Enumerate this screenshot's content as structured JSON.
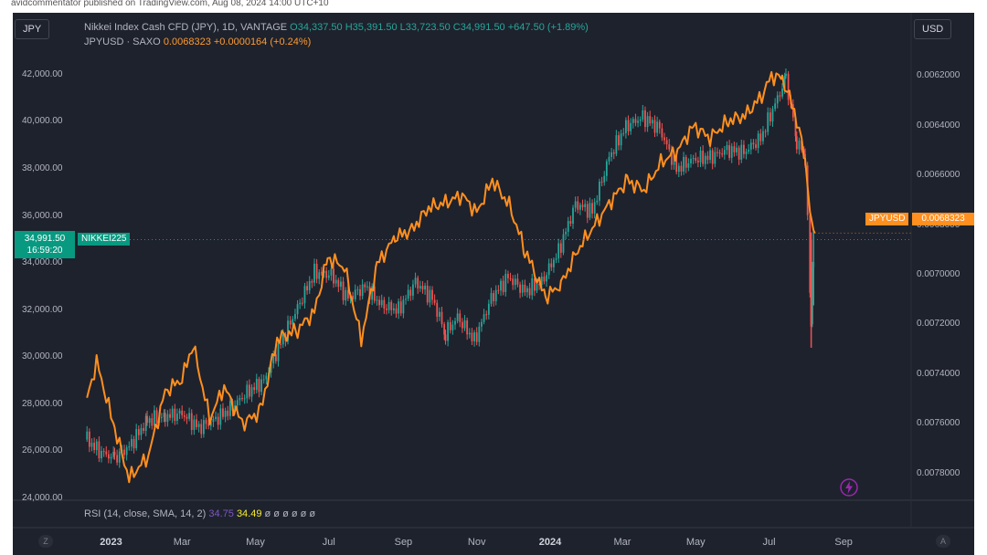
{
  "caption": "avidcommentator published on TradingView.com, Aug 08, 2024 14:00 UTC+10",
  "header": {
    "left_currency": "JPY",
    "right_currency": "USD"
  },
  "legend": {
    "nikkei_name": "Nikkei Index Cash CFD (JPY), 1D, VANTAGE",
    "nikkei_open": "O34,337.50",
    "nikkei_high": "H35,391.50",
    "nikkei_low": "L33,723.50",
    "nikkei_close": "C34,991.50",
    "nikkei_change": "+647.50 (+1.89%)",
    "jpy_name": "JPYUSD · SAXO",
    "jpy_price": "0.0068323",
    "jpy_change": "+0.0000164 (+0.24%)"
  },
  "price_tags": {
    "nikkei_price": "34,991.50",
    "nikkei_countdown": "16:59:20",
    "nikkei_symbol": "NIKKEI225",
    "jpy_symbol": "JPYUSD",
    "jpy_price": "0.0068323"
  },
  "rsi": {
    "label": "RSI (14, close, SMA, 14, 2)",
    "value1": "34.75",
    "value2": "34.49",
    "placeholders": "ø ø ø ø ø ø"
  },
  "corner_buttons": {
    "left": "Z",
    "right": "A"
  },
  "colors": {
    "background": "#1e222d",
    "up_candle": "#26a69a",
    "down_candle": "#ef5350",
    "jpyusd_line": "#ff8f1f",
    "grid": "#2a2e39"
  },
  "icons": [
    "lightning-icon"
  ],
  "chart_data": {
    "type": "line",
    "title": "Nikkei Index Cash CFD (JPY), 1D, VANTAGE",
    "x_ticks": [
      {
        "label": "2023",
        "date": "2023-01-01",
        "bold": true
      },
      {
        "label": "Mar",
        "date": "2023-03-01"
      },
      {
        "label": "May",
        "date": "2023-05-01"
      },
      {
        "label": "Jul",
        "date": "2023-07-01"
      },
      {
        "label": "Sep",
        "date": "2023-09-01"
      },
      {
        "label": "Nov",
        "date": "2023-11-01"
      },
      {
        "label": "2024",
        "date": "2024-01-01",
        "bold": true
      },
      {
        "label": "Mar",
        "date": "2024-03-01"
      },
      {
        "label": "May",
        "date": "2024-05-01"
      },
      {
        "label": "Jul",
        "date": "2024-07-01"
      },
      {
        "label": "Sep",
        "date": "2024-09-01"
      }
    ],
    "x_range": [
      "2022-12-05",
      "2024-09-10"
    ],
    "y_left": {
      "ticks": [
        "42,000.00",
        "40,000.00",
        "38,000.00",
        "36,000.00",
        "34,000.00",
        "32,000.00",
        "30,000.00",
        "28,000.00",
        "26,000.00",
        "24,000.00"
      ],
      "tick_values": [
        42000,
        40000,
        38000,
        36000,
        34000,
        32000,
        30000,
        28000,
        26000,
        24000
      ],
      "range": [
        24000,
        43000
      ]
    },
    "y_right": {
      "inverted": true,
      "ticks": [
        "0.0062000",
        "0.0064000",
        "0.0066000",
        "0.0068000",
        "0.0070000",
        "0.0072000",
        "0.0074000",
        "0.0076000",
        "0.0078000"
      ],
      "tick_values": [
        0.0062,
        0.0064,
        0.0066,
        0.0068,
        0.007,
        0.0072,
        0.0074,
        0.0076,
        0.0078
      ],
      "range": [
        0.0061,
        0.0079
      ]
    },
    "last_price_line": 34991.5,
    "grid": false,
    "series": [
      {
        "name": "Nikkei Index Cash CFD (JPY), 1D, VANTAGE",
        "kind": "candlestick",
        "axis": "left",
        "points": [
          [
            "2022-12-12",
            26500
          ],
          [
            "2022-12-22",
            26000
          ],
          [
            "2023-01-04",
            25700
          ],
          [
            "2023-01-16",
            26200
          ],
          [
            "2023-01-31",
            27300
          ],
          [
            "2023-02-15",
            27500
          ],
          [
            "2023-03-01",
            27600
          ],
          [
            "2023-03-15",
            27000
          ],
          [
            "2023-03-27",
            27300
          ],
          [
            "2023-04-10",
            27800
          ],
          [
            "2023-04-24",
            28500
          ],
          [
            "2023-05-08",
            29000
          ],
          [
            "2023-05-22",
            30600
          ],
          [
            "2023-06-05",
            32100
          ],
          [
            "2023-06-19",
            33600
          ],
          [
            "2023-07-03",
            33500
          ],
          [
            "2023-07-17",
            32500
          ],
          [
            "2023-07-31",
            33000
          ],
          [
            "2023-08-14",
            32200
          ],
          [
            "2023-08-28",
            32000
          ],
          [
            "2023-09-11",
            33200
          ],
          [
            "2023-09-25",
            32500
          ],
          [
            "2023-10-06",
            31000
          ],
          [
            "2023-10-16",
            31700
          ],
          [
            "2023-10-30",
            30700
          ],
          [
            "2023-11-13",
            32500
          ],
          [
            "2023-11-27",
            33400
          ],
          [
            "2023-12-11",
            32800
          ],
          [
            "2023-12-25",
            33200
          ],
          [
            "2024-01-08",
            34500
          ],
          [
            "2024-01-22",
            36500
          ],
          [
            "2024-02-05",
            36200
          ],
          [
            "2024-02-19",
            38500
          ],
          [
            "2024-03-04",
            39800
          ],
          [
            "2024-03-18",
            40200
          ],
          [
            "2024-04-01",
            39700
          ],
          [
            "2024-04-15",
            38000
          ],
          [
            "2024-04-29",
            38400
          ],
          [
            "2024-05-13",
            38500
          ],
          [
            "2024-05-27",
            38800
          ],
          [
            "2024-06-10",
            38700
          ],
          [
            "2024-06-24",
            39300
          ],
          [
            "2024-07-08",
            41000
          ],
          [
            "2024-07-15",
            41800
          ],
          [
            "2024-07-24",
            39200
          ],
          [
            "2024-07-31",
            38500
          ],
          [
            "2024-08-02",
            35800
          ],
          [
            "2024-08-05",
            31300
          ],
          [
            "2024-08-06",
            33700
          ],
          [
            "2024-08-07",
            34300
          ],
          [
            "2024-08-08",
            34991.5
          ]
        ]
      },
      {
        "name": "JPYUSD · SAXO",
        "kind": "line",
        "axis": "right",
        "points": [
          [
            "2022-12-12",
            0.0075
          ],
          [
            "2022-12-20",
            0.00735
          ],
          [
            "2023-01-04",
            0.00762
          ],
          [
            "2023-01-16",
            0.00782
          ],
          [
            "2023-02-01",
            0.00773
          ],
          [
            "2023-02-15",
            0.00747
          ],
          [
            "2023-03-01",
            0.00742
          ],
          [
            "2023-03-10",
            0.00728
          ],
          [
            "2023-03-24",
            0.00758
          ],
          [
            "2023-04-05",
            0.00745
          ],
          [
            "2023-04-20",
            0.0076
          ],
          [
            "2023-05-05",
            0.00755
          ],
          [
            "2023-05-19",
            0.00726
          ],
          [
            "2023-06-05",
            0.00722
          ],
          [
            "2023-06-19",
            0.00715
          ],
          [
            "2023-06-30",
            0.00693
          ],
          [
            "2023-07-14",
            0.00697
          ],
          [
            "2023-07-28",
            0.00726
          ],
          [
            "2023-08-10",
            0.00696
          ],
          [
            "2023-08-25",
            0.00685
          ],
          [
            "2023-09-08",
            0.00682
          ],
          [
            "2023-09-22",
            0.00673
          ],
          [
            "2023-10-06",
            0.00671
          ],
          [
            "2023-10-20",
            0.00668
          ],
          [
            "2023-11-01",
            0.00675
          ],
          [
            "2023-11-14",
            0.00662
          ],
          [
            "2023-11-28",
            0.00672
          ],
          [
            "2023-12-11",
            0.0069
          ],
          [
            "2023-12-28",
            0.00709
          ],
          [
            "2024-01-10",
            0.00704
          ],
          [
            "2024-01-24",
            0.0069
          ],
          [
            "2024-02-07",
            0.0068
          ],
          [
            "2024-02-21",
            0.0067
          ],
          [
            "2024-03-05",
            0.00662
          ],
          [
            "2024-03-19",
            0.00666
          ],
          [
            "2024-04-02",
            0.00655
          ],
          [
            "2024-04-16",
            0.0065
          ],
          [
            "2024-04-29",
            0.0064
          ],
          [
            "2024-05-13",
            0.00645
          ],
          [
            "2024-05-28",
            0.00638
          ],
          [
            "2024-06-11",
            0.00636
          ],
          [
            "2024-06-25",
            0.00628
          ],
          [
            "2024-07-03",
            0.0062
          ],
          [
            "2024-07-12",
            0.00621
          ],
          [
            "2024-07-22",
            0.00634
          ],
          [
            "2024-07-31",
            0.00653
          ],
          [
            "2024-08-05",
            0.0068
          ],
          [
            "2024-08-08",
            0.0068323
          ]
        ]
      }
    ]
  }
}
